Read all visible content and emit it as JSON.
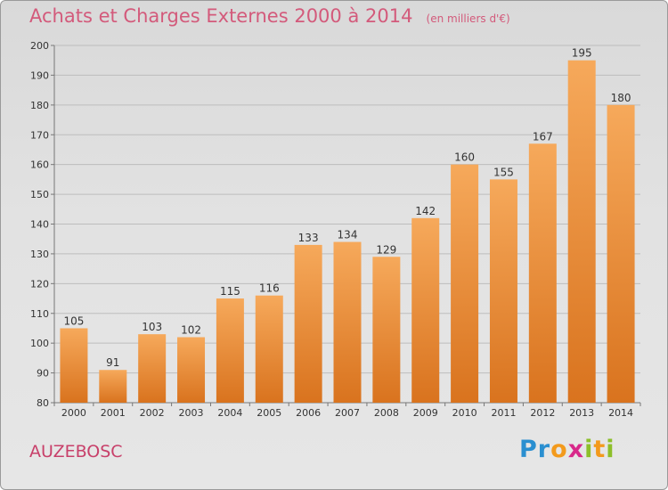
{
  "title": "Achats et Charges Externes 2000 à 2014",
  "subtitle": "(en milliers d'€)",
  "place": "AUZEBOSC",
  "logo": {
    "text": "Proxiti",
    "letters": [
      {
        "ch": "P",
        "color": "#2a8fd0"
      },
      {
        "ch": "r",
        "color": "#2a8fd0"
      },
      {
        "ch": "o",
        "color": "#f39a1c"
      },
      {
        "ch": "x",
        "color": "#d8288a"
      },
      {
        "ch": "i",
        "color": "#8dbf2a"
      },
      {
        "ch": "t",
        "color": "#f39a1c"
      },
      {
        "ch": "i",
        "color": "#8dbf2a"
      }
    ]
  },
  "colors": {
    "bar_light": "#f6a95b",
    "bar_dark": "#d9731e",
    "title": "#d35a7b",
    "place": "#c8406a"
  },
  "chart_data": {
    "type": "bar",
    "categories": [
      "2000",
      "2001",
      "2002",
      "2003",
      "2004",
      "2005",
      "2006",
      "2007",
      "2008",
      "2009",
      "2010",
      "2011",
      "2012",
      "2013",
      "2014"
    ],
    "values": [
      105,
      91,
      103,
      102,
      115,
      116,
      133,
      134,
      129,
      142,
      160,
      155,
      167,
      195,
      180
    ],
    "ylim": [
      80,
      200
    ],
    "yticks": [
      80,
      90,
      100,
      110,
      120,
      130,
      140,
      150,
      160,
      170,
      180,
      190,
      200
    ],
    "grid": true,
    "data_labels": true
  }
}
